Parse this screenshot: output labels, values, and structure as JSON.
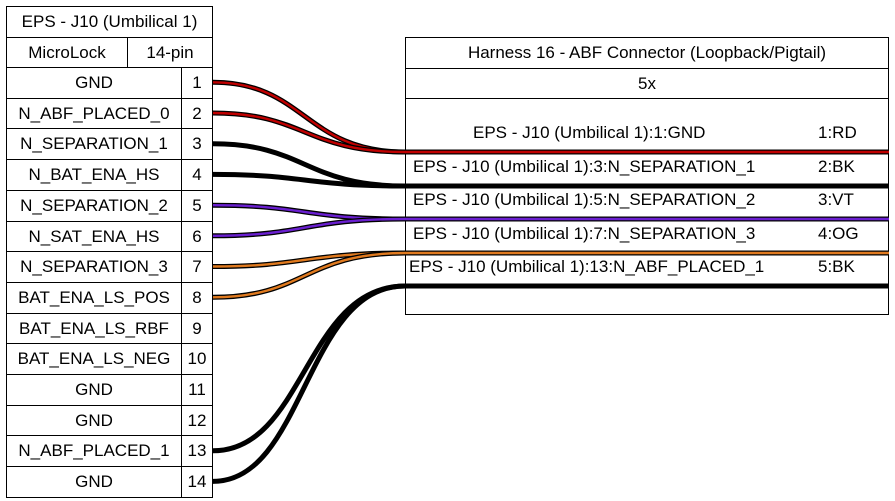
{
  "left_connector": {
    "title": "EPS - J10 (Umbilical 1)",
    "type": "MicroLock",
    "pins_label": "14-pin",
    "pins": [
      {
        "name": "GND",
        "num": "1"
      },
      {
        "name": "N_ABF_PLACED_0",
        "num": "2"
      },
      {
        "name": "N_SEPARATION_1",
        "num": "3"
      },
      {
        "name": "N_BAT_ENA_HS",
        "num": "4"
      },
      {
        "name": "N_SEPARATION_2",
        "num": "5"
      },
      {
        "name": "N_SAT_ENA_HS",
        "num": "6"
      },
      {
        "name": "N_SEPARATION_3",
        "num": "7"
      },
      {
        "name": "BAT_ENA_LS_POS",
        "num": "8"
      },
      {
        "name": "BAT_ENA_LS_RBF",
        "num": "9"
      },
      {
        "name": "BAT_ENA_LS_NEG",
        "num": "10"
      },
      {
        "name": "GND",
        "num": "11"
      },
      {
        "name": "GND",
        "num": "12"
      },
      {
        "name": "N_ABF_PLACED_1",
        "num": "13"
      },
      {
        "name": "GND",
        "num": "14"
      }
    ]
  },
  "right_connector": {
    "title": "Harness 16 - ABF Connector (Loopback/Pigtail)",
    "count": "5x",
    "wires": [
      {
        "label": "EPS - J10 (Umbilical 1):1:GND",
        "wire": "1:RD"
      },
      {
        "label": "EPS - J10 (Umbilical 1):3:N_SEPARATION_1",
        "wire": "2:BK"
      },
      {
        "label": "EPS - J10 (Umbilical 1):5:N_SEPARATION_2",
        "wire": "3:VT"
      },
      {
        "label": "EPS - J10 (Umbilical 1):7:N_SEPARATION_3",
        "wire": "4:OG"
      },
      {
        "label": "EPS - J10 (Umbilical 1):13:N_ABF_PLACED_1",
        "wire": "5:BK"
      }
    ]
  },
  "colors": {
    "red": "#c00000",
    "black": "#000000",
    "violet": "#6a1fd0",
    "orange": "#e07a1f"
  }
}
